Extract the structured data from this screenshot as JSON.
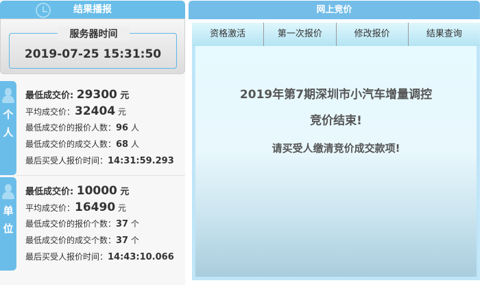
{
  "left": {
    "header": "结果播报",
    "server_time_label": "服务器时间",
    "server_time": "2019-07-25 15:31:50",
    "personal": {
      "tab": [
        "个",
        "人"
      ],
      "rows": [
        {
          "label": "最低成交价: ",
          "value": "29300",
          "unit": " 元"
        },
        {
          "label": "平均成交价：",
          "value": "32404",
          "unit": " 元"
        },
        {
          "label": "最低成交价的报价人数：",
          "value": "96",
          "unit": " 人"
        },
        {
          "label": "最低成交价的成交人数：",
          "value": "68",
          "unit": " 人"
        },
        {
          "label": "最后买受人报价时间：",
          "value": "14:31:59.293",
          "unit": ""
        }
      ]
    },
    "unit": {
      "tab": [
        "单",
        "位"
      ],
      "rows": [
        {
          "label": "最低成交价: ",
          "value": "10000",
          "unit": " 元"
        },
        {
          "label": "平均成交价：",
          "value": "16490",
          "unit": " 元"
        },
        {
          "label": "最低成交价的报价个数：",
          "value": "37",
          "unit": " 个"
        },
        {
          "label": "最低成交价的成交个数：",
          "value": "37",
          "unit": " 个"
        },
        {
          "label": "最后买受人报价时间：",
          "value": "14:43:10.066",
          "unit": ""
        }
      ]
    }
  },
  "right": {
    "header": "网上竞价",
    "tabs": [
      "资格激活",
      "第一次报价",
      "修改报价",
      "结果查询"
    ],
    "message": {
      "line1": "2019年第7期深圳市小汽车增量调控",
      "line2": "竞价结束!",
      "line3": "请买受人缴清竞价成交款项!"
    }
  },
  "colors": {
    "accent": "#68bde9",
    "tab_bg": "#b4e4f3",
    "content_bg": "#e6faff"
  }
}
